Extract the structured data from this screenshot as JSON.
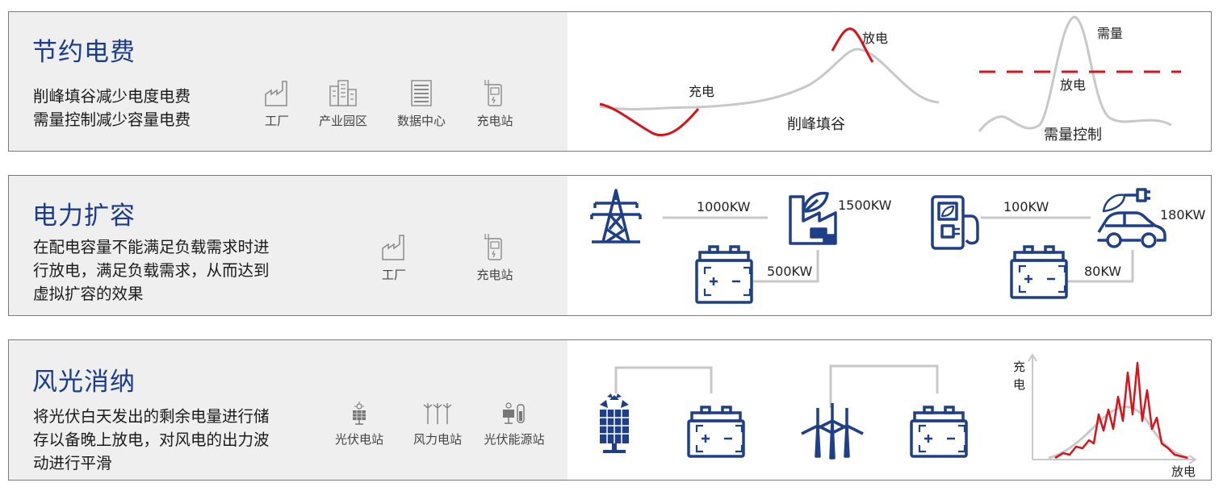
{
  "rows": [
    {
      "title": "节约电费",
      "desc": [
        "削峰填谷减少电度电费",
        "需量控制减少容量电费"
      ],
      "icons": [
        {
          "label": "工厂",
          "icon": "factory-icon"
        },
        {
          "label": "产业园区",
          "icon": "industrial-park-icon"
        },
        {
          "label": "数据中心",
          "icon": "data-center-icon"
        },
        {
          "label": "充电站",
          "icon": "charging-station-icon"
        }
      ],
      "diagram": {
        "peak_shaving": {
          "charge_label": "充电",
          "discharge_label": "放电",
          "caption": "削峰填谷"
        },
        "demand_control": {
          "demand_label": "需量",
          "discharge_label": "放电",
          "caption": "需量控制"
        }
      }
    },
    {
      "title": "电力扩容",
      "desc": [
        "在配电容量不能满足负载需求时进",
        "行放电，满足负载需求，从而达到",
        "虚拟扩容的效果"
      ],
      "icons": [
        {
          "label": "工厂",
          "icon": "factory-icon"
        },
        {
          "label": "充电站",
          "icon": "charging-station-icon"
        }
      ],
      "diagram": {
        "grid_to_factory": "1000KW",
        "factory_load": "1500KW",
        "battery_to_factory": "500KW",
        "charger_supply": "100KW",
        "ev_load": "180KW",
        "battery_to_charger": "80KW"
      }
    },
    {
      "title": "风光消纳",
      "desc": [
        "将光伏白天发出的剩余电量进行储",
        "存以备晚上放电，对风电的出力波",
        "动进行平滑"
      ],
      "icons": [
        {
          "label": "光伏电站",
          "icon": "solar-station-icon"
        },
        {
          "label": "风力电站",
          "icon": "wind-farm-icon"
        },
        {
          "label": "光伏能源站",
          "icon": "solar-energy-station-icon"
        }
      ],
      "diagram": {
        "y_axis_label": "充电",
        "x_axis_label": "放电"
      }
    }
  ],
  "colors": {
    "title_blue": "#1b3c8c",
    "icon_blue": "#1f3f88",
    "accent_red": "#d7141c",
    "curve_gray": "#c8c8c8",
    "panel_gray": "#efefef"
  }
}
